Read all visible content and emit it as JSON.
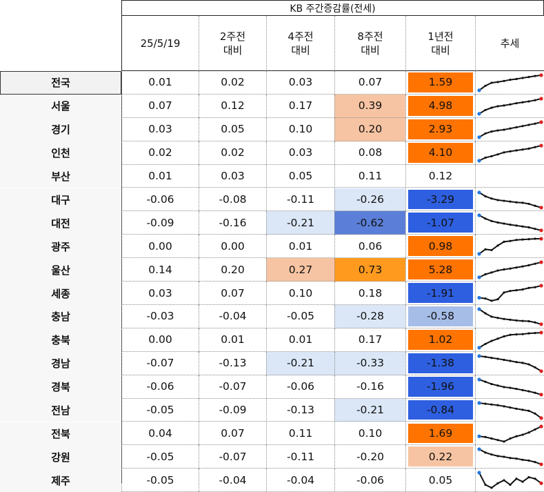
{
  "header": {
    "title": "KB 주간증감률(전세)",
    "columns": [
      {
        "line1": "25/5/19",
        "line2": ""
      },
      {
        "line1": "2주전",
        "line2": "대비"
      },
      {
        "line1": "4주전",
        "line2": "대비"
      },
      {
        "line1": "8주전",
        "line2": "대비"
      },
      {
        "line1": "1년전",
        "line2": "대비"
      },
      {
        "line1": "추세",
        "line2": ""
      }
    ]
  },
  "colors": {
    "orange_strong": "#ff7300",
    "orange_mid": "#ff9a1f",
    "peach": "#f7c4a3",
    "blue_strong": "#2e5fe0",
    "blue_mid": "#5b7fd8",
    "blue_light": "#a6bde8",
    "blue_pale": "#dbe7f7",
    "spark_line": "#111111",
    "spark_first": "#2277dd",
    "spark_last": "#dd2222"
  },
  "chart_data": {
    "type": "table",
    "title": "KB 주간증감률(전세)",
    "columns": [
      "25/5/19",
      "2주전 대비",
      "4주전 대비",
      "8주전 대비",
      "1년전 대비",
      "추세"
    ],
    "rows": [
      {
        "region": "전국",
        "values": [
          "0.01",
          "0.02",
          "0.03",
          "0.07",
          "1.59"
        ],
        "fills": [
          "",
          "",
          "",
          "",
          "orange_strong"
        ],
        "trend": [
          0.0,
          0.3,
          0.5,
          0.55,
          0.62,
          0.7,
          0.75,
          0.82,
          0.88,
          0.95,
          1.0
        ]
      },
      {
        "region": "서울",
        "values": [
          "0.07",
          "0.12",
          "0.17",
          "0.39",
          "4.98"
        ],
        "fills": [
          "",
          "",
          "",
          "peach",
          "orange_strong"
        ],
        "trend": [
          0.0,
          0.25,
          0.4,
          0.5,
          0.55,
          0.62,
          0.7,
          0.76,
          0.82,
          0.9,
          1.0
        ]
      },
      {
        "region": "경기",
        "values": [
          "0.03",
          "0.05",
          "0.10",
          "0.20",
          "2.93"
        ],
        "fills": [
          "",
          "",
          "",
          "peach",
          "orange_strong"
        ],
        "trend": [
          0.0,
          0.25,
          0.38,
          0.45,
          0.5,
          0.58,
          0.66,
          0.74,
          0.82,
          0.9,
          1.0
        ]
      },
      {
        "region": "인천",
        "values": [
          "0.02",
          "0.02",
          "0.03",
          "0.08",
          "4.10"
        ],
        "fills": [
          "",
          "",
          "",
          "",
          "orange_strong"
        ],
        "trend": [
          0.0,
          0.2,
          0.3,
          0.42,
          0.55,
          0.62,
          0.68,
          0.74,
          0.8,
          0.9,
          1.0
        ]
      },
      {
        "region": "부산",
        "values": [
          "0.01",
          "0.03",
          "0.05",
          "0.11",
          "0.12"
        ],
        "fills": [
          "",
          "",
          "",
          "",
          ""
        ],
        "trend": []
      },
      {
        "region": "대구",
        "values": [
          "-0.06",
          "-0.08",
          "-0.11",
          "-0.26",
          "-3.29"
        ],
        "fills": [
          "",
          "",
          "",
          "blue_pale",
          "blue_strong"
        ],
        "trend": [
          1.0,
          0.75,
          0.6,
          0.5,
          0.45,
          0.4,
          0.35,
          0.32,
          0.25,
          0.12,
          0.0
        ]
      },
      {
        "region": "대전",
        "values": [
          "-0.09",
          "-0.16",
          "-0.21",
          "-0.62",
          "-1.07"
        ],
        "fills": [
          "",
          "",
          "blue_pale",
          "blue_mid",
          "blue_strong"
        ],
        "trend": [
          1.0,
          0.78,
          0.62,
          0.52,
          0.45,
          0.38,
          0.32,
          0.26,
          0.2,
          0.1,
          0.0
        ]
      },
      {
        "region": "광주",
        "values": [
          "0.00",
          "0.00",
          "0.01",
          "0.06",
          "0.98"
        ],
        "fills": [
          "",
          "",
          "",
          "",
          "orange_strong"
        ],
        "trend": [
          0.0,
          0.3,
          0.25,
          0.55,
          0.8,
          0.85,
          0.92,
          0.95,
          0.97,
          1.0,
          1.0
        ]
      },
      {
        "region": "울산",
        "values": [
          "0.14",
          "0.20",
          "0.27",
          "0.73",
          "5.28"
        ],
        "fills": [
          "",
          "",
          "peach",
          "orange_mid",
          "orange_strong"
        ],
        "trend": [
          0.0,
          0.2,
          0.32,
          0.45,
          0.52,
          0.58,
          0.65,
          0.72,
          0.8,
          0.9,
          1.0
        ]
      },
      {
        "region": "세종",
        "values": [
          "0.03",
          "0.07",
          "0.10",
          "0.18",
          "-1.91"
        ],
        "fills": [
          "",
          "",
          "",
          "",
          "blue_strong"
        ],
        "trend": [
          0.2,
          0.15,
          0.0,
          0.1,
          0.55,
          0.65,
          0.7,
          0.75,
          0.85,
          0.9,
          1.0
        ]
      },
      {
        "region": "충남",
        "values": [
          "-0.03",
          "-0.04",
          "-0.05",
          "-0.28",
          "-0.58"
        ],
        "fills": [
          "",
          "",
          "",
          "blue_pale",
          "blue_light"
        ],
        "trend": [
          1.0,
          0.72,
          0.5,
          0.42,
          0.35,
          0.3,
          0.25,
          0.22,
          0.2,
          0.12,
          0.0
        ]
      },
      {
        "region": "충북",
        "values": [
          "0.00",
          "0.01",
          "0.01",
          "0.17",
          "1.02"
        ],
        "fills": [
          "",
          "",
          "",
          "",
          "orange_strong"
        ],
        "trend": [
          0.0,
          0.25,
          0.45,
          0.6,
          0.75,
          0.85,
          0.88,
          0.9,
          0.95,
          0.97,
          1.0
        ]
      },
      {
        "region": "경남",
        "values": [
          "-0.07",
          "-0.13",
          "-0.21",
          "-0.33",
          "-1.38"
        ],
        "fills": [
          "",
          "",
          "blue_pale",
          "blue_pale",
          "blue_strong"
        ],
        "trend": [
          1.0,
          0.95,
          0.88,
          0.82,
          0.75,
          0.68,
          0.6,
          0.55,
          0.45,
          0.25,
          0.0
        ]
      },
      {
        "region": "경북",
        "values": [
          "-0.06",
          "-0.07",
          "-0.06",
          "-0.16",
          "-1.96"
        ],
        "fills": [
          "",
          "",
          "",
          "",
          "blue_strong"
        ],
        "trend": [
          1.0,
          0.85,
          0.7,
          0.6,
          0.5,
          0.45,
          0.38,
          0.3,
          0.22,
          0.12,
          0.0
        ]
      },
      {
        "region": "전남",
        "values": [
          "-0.05",
          "-0.09",
          "-0.13",
          "-0.21",
          "-0.84"
        ],
        "fills": [
          "",
          "",
          "",
          "blue_pale",
          "blue_strong"
        ],
        "trend": [
          1.0,
          0.95,
          0.9,
          0.85,
          0.78,
          0.7,
          0.62,
          0.55,
          0.48,
          0.3,
          0.0
        ]
      },
      {
        "region": "전북",
        "values": [
          "0.04",
          "0.07",
          "0.11",
          "0.10",
          "1.69"
        ],
        "fills": [
          "",
          "",
          "",
          "",
          "orange_strong"
        ],
        "trend": [
          0.35,
          0.3,
          0.2,
          0.1,
          0.0,
          0.2,
          0.35,
          0.45,
          0.6,
          0.8,
          1.0
        ]
      },
      {
        "region": "강원",
        "values": [
          "-0.05",
          "-0.07",
          "-0.11",
          "-0.20",
          "0.22"
        ],
        "fills": [
          "",
          "",
          "",
          "",
          "peach"
        ],
        "trend": [
          1.0,
          0.78,
          0.65,
          0.55,
          0.5,
          0.42,
          0.38,
          0.3,
          0.25,
          0.15,
          0.0
        ]
      },
      {
        "region": "제주",
        "values": [
          "-0.05",
          "-0.04",
          "-0.04",
          "-0.06",
          "0.05"
        ],
        "fills": [
          "",
          "",
          "",
          "",
          ""
        ],
        "trend": [
          1.0,
          0.2,
          0.0,
          0.3,
          0.5,
          0.2,
          0.6,
          0.4,
          0.7,
          0.6,
          0.3
        ]
      }
    ]
  }
}
